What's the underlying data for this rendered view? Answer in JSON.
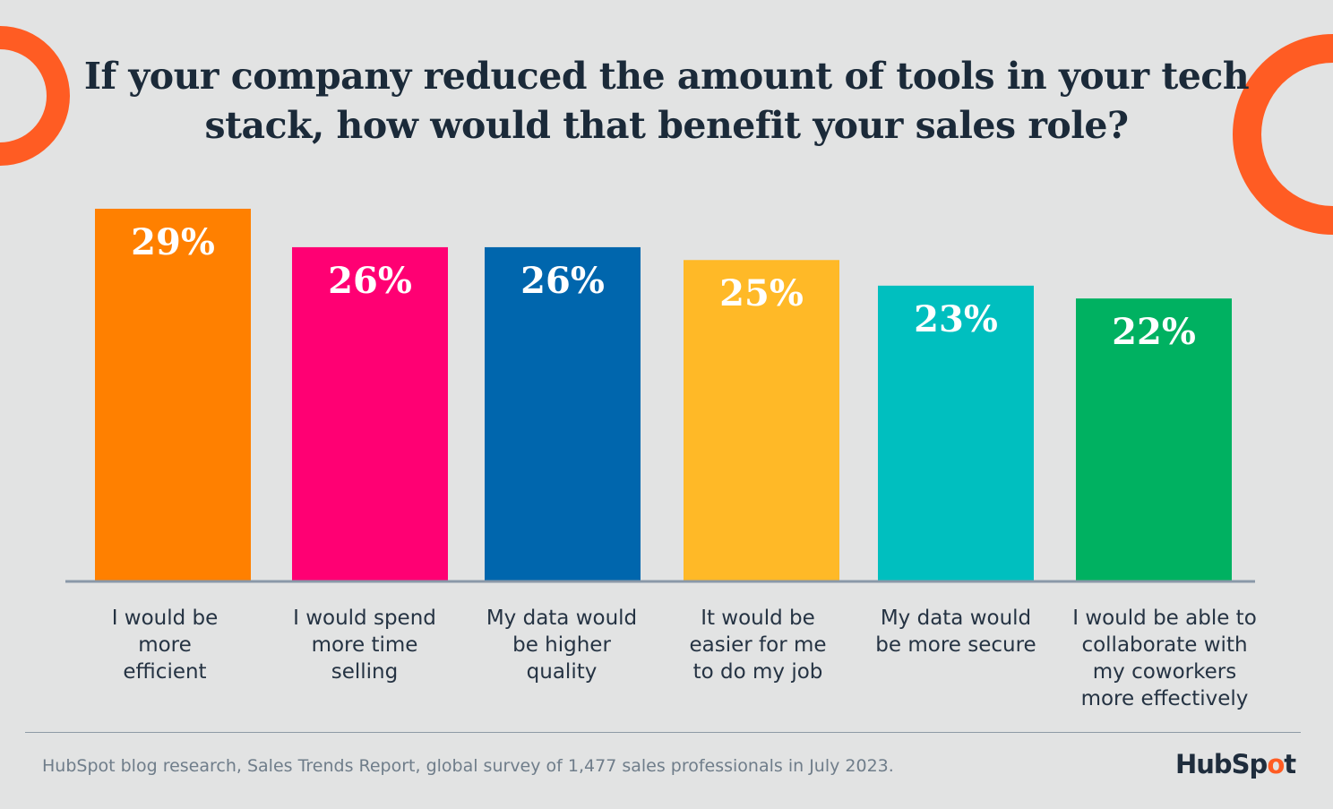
{
  "chart_data": {
    "type": "bar",
    "title": "If your company reduced the amount of tools in your tech stack, how would that benefit your sales role?",
    "title_lines": [
      "If your company reduced the amount of tools in your tech",
      "stack, how would that benefit your sales role?"
    ],
    "categories": [
      [
        "I would be",
        "more",
        "efficient"
      ],
      [
        "I would spend",
        "more time",
        "selling"
      ],
      [
        "My data would",
        "be higher",
        "quality"
      ],
      [
        "It would be",
        "easier for me",
        "to do my job"
      ],
      [
        "My data would",
        "be more secure"
      ],
      [
        "I would be able to",
        "collaborate with",
        "my coworkers",
        "more effectively"
      ]
    ],
    "values": [
      29,
      26,
      26,
      25,
      23,
      22
    ],
    "data_labels": [
      "29%",
      "26%",
      "26%",
      "25%",
      "23%",
      "22%"
    ],
    "colors": [
      "#ff8000",
      "#ff0073",
      "#0066ad",
      "#ffb927",
      "#00bfbf",
      "#00b161"
    ],
    "ylim": [
      0,
      29
    ],
    "grid": false,
    "xlabel": "",
    "ylabel": ""
  },
  "footer": {
    "source": "HubSpot blog research, Sales Trends Report, global survey of 1,477 sales professionals in July 2023.",
    "logo_text": "HubSpot"
  },
  "accent_color": "#ff5c23"
}
